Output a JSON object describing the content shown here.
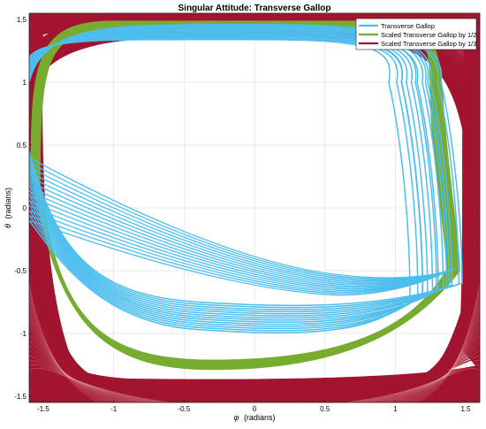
{
  "chart_data": {
    "type": "line",
    "title": "Singular Attitude: Transverse Gallop",
    "xlabel_symbol": "φ",
    "xlabel_unit": "(radians)",
    "ylabel_symbol": "θ",
    "ylabel_unit": "(radians)",
    "xlim": [
      -1.6,
      1.6
    ],
    "ylim": [
      -1.55,
      1.55
    ],
    "xticks": [
      -1.5,
      -1,
      -0.5,
      0,
      0.5,
      1,
      1.5
    ],
    "xtick_labels": [
      "-1.5",
      "-1",
      "-0.5",
      "0",
      "0.5",
      "1",
      "1.5"
    ],
    "yticks": [
      -1.5,
      -1,
      -0.5,
      0,
      0.5,
      1,
      1.5
    ],
    "ytick_labels": [
      "-1.5",
      "-1",
      "-0.5",
      "0",
      "0.5",
      "1",
      "1.5"
    ],
    "grid": true,
    "legend_position": "top-right",
    "series": [
      {
        "name": "Transverse Gallop",
        "color": "#4dbeee",
        "loop_count": 14,
        "loop": {
          "x_left": -1.6,
          "x_right": 1.4,
          "y_top": 1.45,
          "y_bottom": -0.85
        }
      },
      {
        "name": "Scaled Transverse Gallop by 1/2",
        "color": "#77ac30",
        "loop_count": 8,
        "loop": {
          "x_left": -1.58,
          "x_right": 1.45,
          "y_top": 1.48,
          "y_bottom": -1.28
        }
      },
      {
        "name": "Scaled Transverse Gallop by 1/3",
        "color": "#a2142f",
        "loop_count": 30,
        "loop": {
          "x_left": -1.6,
          "x_right": 1.6,
          "y_top": 1.55,
          "y_bottom": -1.55
        }
      }
    ]
  }
}
